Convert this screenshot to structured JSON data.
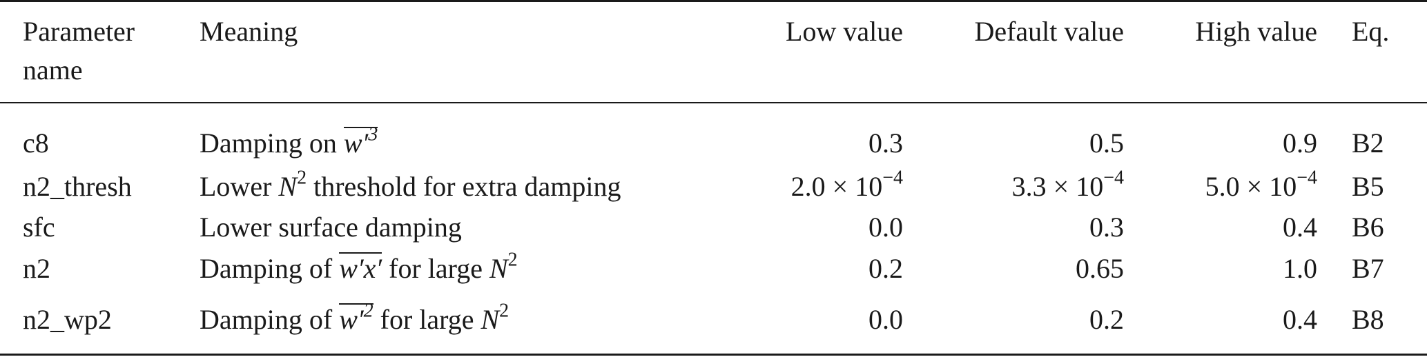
{
  "table": {
    "headers": {
      "name_line1": "Parameter",
      "name_line2": "name",
      "meaning": "Meaning",
      "low": "Low value",
      "default": "Default value",
      "high": "High value",
      "eq": "Eq."
    },
    "rows": [
      {
        "name": "c8",
        "meaning_pre": "Damping on ",
        "meaning_math": "w′",
        "meaning_sup": "3",
        "meaning_post": "",
        "low": "0.3",
        "default": "0.5",
        "high": "0.9",
        "eq": "B2"
      },
      {
        "name": "n2_thresh",
        "meaning_pre": "Lower ",
        "meaning_math": "N",
        "meaning_sup": "2",
        "meaning_post": " threshold for extra damping",
        "low_mant": "2.0 × 10",
        "low_exp": "−4",
        "default_mant": "3.3 × 10",
        "default_exp": "−4",
        "high_mant": "5.0 × 10",
        "high_exp": "−4",
        "eq": "B5"
      },
      {
        "name": "sfc",
        "meaning": "Lower surface damping",
        "low": "0.0",
        "default": "0.3",
        "high": "0.4",
        "eq": "B6"
      },
      {
        "name": "n2",
        "meaning_pre": "Damping of ",
        "meaning_math": "w′x′",
        "meaning_mid": " for large ",
        "meaning_math2": "N",
        "meaning_sup2": "2",
        "low": "0.2",
        "default": "0.65",
        "high": "1.0",
        "eq": "B7"
      },
      {
        "name": "n2_wp2",
        "meaning_pre": "Damping of ",
        "meaning_math": "w′",
        "meaning_sup": "2",
        "meaning_mid": " for large ",
        "meaning_math2": "N",
        "meaning_sup2": "2",
        "low": "0.0",
        "default": "0.2",
        "high": "0.4",
        "eq": "B8"
      }
    ]
  }
}
